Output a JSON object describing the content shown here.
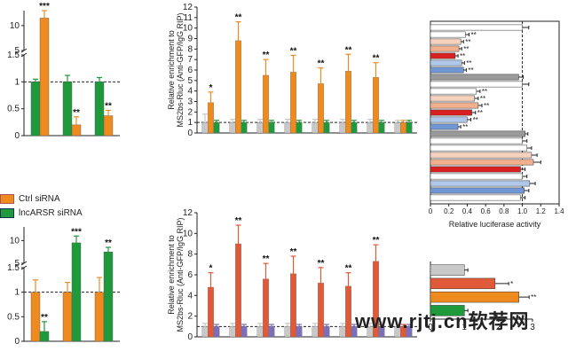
{
  "colors": {
    "orange": "#EE8A1E",
    "green": "#1E9A3C",
    "gray": "#C8C8C8",
    "red_orange": "#E05A3A",
    "purple": "#7A6FB8",
    "light_peach": "#F7D3BF",
    "peach": "#F3B08E",
    "red": "#D92020",
    "light_blue": "#AFC8EA",
    "blue": "#7196D6",
    "dark_gray": "#9A9A9A",
    "white": "#FFFFFF"
  },
  "legend": {
    "items": [
      {
        "label": "Ctrl siRNA",
        "color": "#EE8A1E"
      },
      {
        "label": "lncARSR siRNA",
        "color": "#1E9A3C"
      }
    ]
  },
  "watermark": {
    "text": "www.rjtj.cn软荐网"
  },
  "chart_data": [
    {
      "id": "top-left",
      "type": "bar",
      "title": "",
      "ylim": [
        0,
        13
      ],
      "axis_break": {
        "from": 1.5,
        "to": 5
      },
      "y_ticks_low": [
        "0",
        "0.5",
        "1",
        "1.5"
      ],
      "y_ticks_high": [
        "5",
        "10"
      ],
      "groups": [
        {
          "values": [
            1.0,
            11.5
          ],
          "colors": [
            "#1E9A3C",
            "#EE8A1E"
          ],
          "errors": [
            0.05,
            1.5
          ],
          "labels": [
            "",
            "***"
          ]
        },
        {
          "values": [
            1.0,
            0.2
          ],
          "colors": [
            "#1E9A3C",
            "#EE8A1E"
          ],
          "errors": [
            0.12,
            0.15
          ],
          "labels": [
            "",
            "**"
          ]
        },
        {
          "values": [
            1.0,
            0.37
          ],
          "colors": [
            "#1E9A3C",
            "#EE8A1E"
          ],
          "errors": [
            0.08,
            0.1
          ],
          "labels": [
            "",
            "**"
          ]
        }
      ],
      "dashed_line": 1
    },
    {
      "id": "top-middle",
      "type": "bar",
      "ylabel": "Relative enrichment to MS2bs-Rluc (Anti-GFP/IgG RIP)",
      "ylim": [
        0,
        12
      ],
      "y_ticks": [
        "0",
        "1",
        "2",
        "3",
        "4",
        "5",
        "6",
        "7",
        "8",
        "9",
        "10",
        "11",
        "12"
      ],
      "groups": [
        {
          "values": [
            1.0,
            2.9,
            1.0
          ],
          "errors": [
            0.8,
            1.0,
            0.2
          ],
          "labels": [
            "",
            "*",
            ""
          ]
        },
        {
          "values": [
            1.0,
            8.8,
            1.0
          ],
          "errors": [
            0.3,
            1.8,
            0.2
          ],
          "labels": [
            "",
            "**",
            ""
          ]
        },
        {
          "values": [
            1.0,
            5.5,
            1.0
          ],
          "errors": [
            0.3,
            1.5,
            0.2
          ],
          "labels": [
            "",
            "**",
            ""
          ]
        },
        {
          "values": [
            1.0,
            5.8,
            1.0
          ],
          "errors": [
            0.3,
            1.6,
            0.2
          ],
          "labels": [
            "",
            "**",
            ""
          ]
        },
        {
          "values": [
            1.0,
            4.7,
            1.0
          ],
          "errors": [
            0.3,
            1.5,
            0.2
          ],
          "labels": [
            "",
            "**",
            ""
          ]
        },
        {
          "values": [
            1.0,
            5.9,
            1.0
          ],
          "errors": [
            0.3,
            1.6,
            0.2
          ],
          "labels": [
            "",
            "**",
            ""
          ]
        },
        {
          "values": [
            1.0,
            5.3,
            1.0
          ],
          "errors": [
            0.3,
            1.4,
            0.2
          ],
          "labels": [
            "",
            "**",
            ""
          ]
        },
        {
          "values": [
            1.0,
            1.0,
            1.0
          ],
          "errors": [
            0.2,
            0.2,
            0.2
          ],
          "labels": [
            "",
            "",
            ""
          ]
        }
      ],
      "series_colors": [
        "#C8C8C8",
        "#EE8A1E",
        "#1E9A3C"
      ],
      "dashed_line": 1
    },
    {
      "id": "bottom-left",
      "type": "bar",
      "ylim": [
        0,
        12
      ],
      "axis_break": {
        "from": 1.5,
        "to": 5
      },
      "y_ticks_low": [
        "0",
        "0.5",
        "1",
        "1.5"
      ],
      "y_ticks_high": [
        "5",
        "10"
      ],
      "groups": [
        {
          "values": [
            1.0,
            0.2
          ],
          "colors": [
            "#EE8A1E",
            "#1E9A3C"
          ],
          "errors": [
            0.25,
            0.2
          ],
          "labels": [
            "",
            "**"
          ]
        },
        {
          "values": [
            1.0,
            9.5
          ],
          "colors": [
            "#EE8A1E",
            "#1E9A3C"
          ],
          "errors": [
            0.2,
            1.5
          ],
          "labels": [
            "",
            "***"
          ]
        },
        {
          "values": [
            1.0,
            7.5
          ],
          "colors": [
            "#EE8A1E",
            "#1E9A3C"
          ],
          "errors": [
            0.3,
            1.0
          ],
          "labels": [
            "",
            "**"
          ]
        }
      ],
      "dashed_line": 1
    },
    {
      "id": "bottom-middle",
      "type": "bar",
      "ylabel": "Relative enrichment to MS2bs-Rluc (Anti-GFP/IgG RIP)",
      "ylim": [
        0,
        12
      ],
      "y_ticks": [
        "0",
        "2",
        "4",
        "6",
        "8",
        "10",
        "12"
      ],
      "groups": [
        {
          "values": [
            1.0,
            4.8,
            1.0
          ],
          "errors": [
            0.3,
            1.4,
            0.2
          ],
          "labels": [
            "",
            "*",
            ""
          ]
        },
        {
          "values": [
            1.0,
            9.0,
            1.0
          ],
          "errors": [
            0.3,
            1.8,
            0.2
          ],
          "labels": [
            "",
            "**",
            ""
          ]
        },
        {
          "values": [
            1.0,
            5.6,
            1.0
          ],
          "errors": [
            0.3,
            1.5,
            0.2
          ],
          "labels": [
            "",
            "**",
            ""
          ]
        },
        {
          "values": [
            1.0,
            6.1,
            1.0
          ],
          "errors": [
            0.3,
            1.7,
            0.2
          ],
          "labels": [
            "",
            "**",
            ""
          ]
        },
        {
          "values": [
            1.0,
            5.2,
            1.0
          ],
          "errors": [
            0.3,
            1.5,
            0.2
          ],
          "labels": [
            "",
            "**",
            ""
          ]
        },
        {
          "values": [
            1.0,
            4.9,
            1.0
          ],
          "errors": [
            0.3,
            1.3,
            0.2
          ],
          "labels": [
            "",
            "**",
            ""
          ]
        },
        {
          "values": [
            1.0,
            7.3,
            1.0
          ],
          "errors": [
            0.3,
            1.6,
            0.2
          ],
          "labels": [
            "",
            "**",
            ""
          ]
        },
        {
          "values": [
            1.0,
            1.0,
            1.0
          ],
          "errors": [
            0.2,
            0.2,
            0.2
          ],
          "labels": [
            "",
            "",
            ""
          ]
        }
      ],
      "series_colors": [
        "#C8C8C8",
        "#E05A3A",
        "#7A6FB8"
      ],
      "dashed_line": 1
    },
    {
      "id": "top-right",
      "type": "bar",
      "orientation": "horizontal",
      "xlabel": "Relative luciferase activity",
      "xlim": [
        0,
        1.4
      ],
      "x_ticks": [
        "0",
        "0.2",
        "0.4",
        "0.6",
        "0.8",
        "1.0",
        "1.2",
        "1.4"
      ],
      "bars": [
        {
          "value": 1.0,
          "error": 0.07,
          "color": "#FFFFFF",
          "label": ""
        },
        {
          "value": 0.38,
          "error": 0.04,
          "color": "#FFFFFF",
          "label": "**"
        },
        {
          "value": 0.33,
          "error": 0.03,
          "color": "#F7D3BF",
          "label": "**"
        },
        {
          "value": 0.31,
          "error": 0.03,
          "color": "#F3B08E",
          "label": "**"
        },
        {
          "value": 0.27,
          "error": 0.03,
          "color": "#D92020",
          "label": "**"
        },
        {
          "value": 0.34,
          "error": 0.03,
          "color": "#AFC8EA",
          "label": "**"
        },
        {
          "value": 0.36,
          "error": 0.03,
          "color": "#7196D6",
          "label": "**"
        },
        {
          "value": 0.96,
          "error": 0.05,
          "color": "#9A9A9A",
          "label": ""
        },
        {
          "value": 1.0,
          "error": 0.07,
          "color": "#FFFFFF",
          "label": ""
        },
        {
          "value": 0.5,
          "error": 0.04,
          "color": "#FFFFFF",
          "label": "**"
        },
        {
          "value": 0.48,
          "error": 0.04,
          "color": "#F7D3BF",
          "label": "**"
        },
        {
          "value": 0.52,
          "error": 0.04,
          "color": "#F3B08E",
          "label": "**"
        },
        {
          "value": 0.45,
          "error": 0.04,
          "color": "#D92020",
          "label": "**"
        },
        {
          "value": 0.4,
          "error": 0.04,
          "color": "#AFC8EA",
          "label": "**"
        },
        {
          "value": 0.3,
          "error": 0.03,
          "color": "#7196D6",
          "label": "**"
        },
        {
          "value": 1.03,
          "error": 0.03,
          "color": "#9A9A9A",
          "label": ""
        },
        {
          "value": 1.0,
          "error": 0.05,
          "color": "#FFFFFF",
          "label": ""
        },
        {
          "value": 1.05,
          "error": 0.05,
          "color": "#FFFFFF",
          "label": ""
        },
        {
          "value": 1.1,
          "error": 0.06,
          "color": "#F7D3BF",
          "label": ""
        },
        {
          "value": 1.12,
          "error": 0.08,
          "color": "#F3B08E",
          "label": ""
        },
        {
          "value": 0.98,
          "error": 0.05,
          "color": "#D92020",
          "label": ""
        },
        {
          "value": 1.0,
          "error": 0.05,
          "color": "#FFFFFF",
          "label": ""
        },
        {
          "value": 1.08,
          "error": 0.06,
          "color": "#AFC8EA",
          "label": ""
        },
        {
          "value": 1.02,
          "error": 0.05,
          "color": "#7196D6",
          "label": ""
        },
        {
          "value": 0.98,
          "error": 0.05,
          "color": "#FFFFFF",
          "label": ""
        }
      ],
      "dashed_line": 1.0
    },
    {
      "id": "bottom-right",
      "type": "bar",
      "orientation": "horizontal",
      "xlim": [
        0,
        3
      ],
      "x_ticks": [
        "0",
        "1",
        "2",
        "3"
      ],
      "bars": [
        {
          "value": 1.0,
          "error": 0.1,
          "color": "#C8C8C8",
          "label": ""
        },
        {
          "value": 1.9,
          "error": 0.4,
          "color": "#E05A3A",
          "label": "*"
        },
        {
          "value": 2.6,
          "error": 0.3,
          "color": "#EE8A1E",
          "label": "**"
        },
        {
          "value": 1.0,
          "error": 0.1,
          "color": "#1E9A3C",
          "label": ""
        }
      ]
    }
  ]
}
